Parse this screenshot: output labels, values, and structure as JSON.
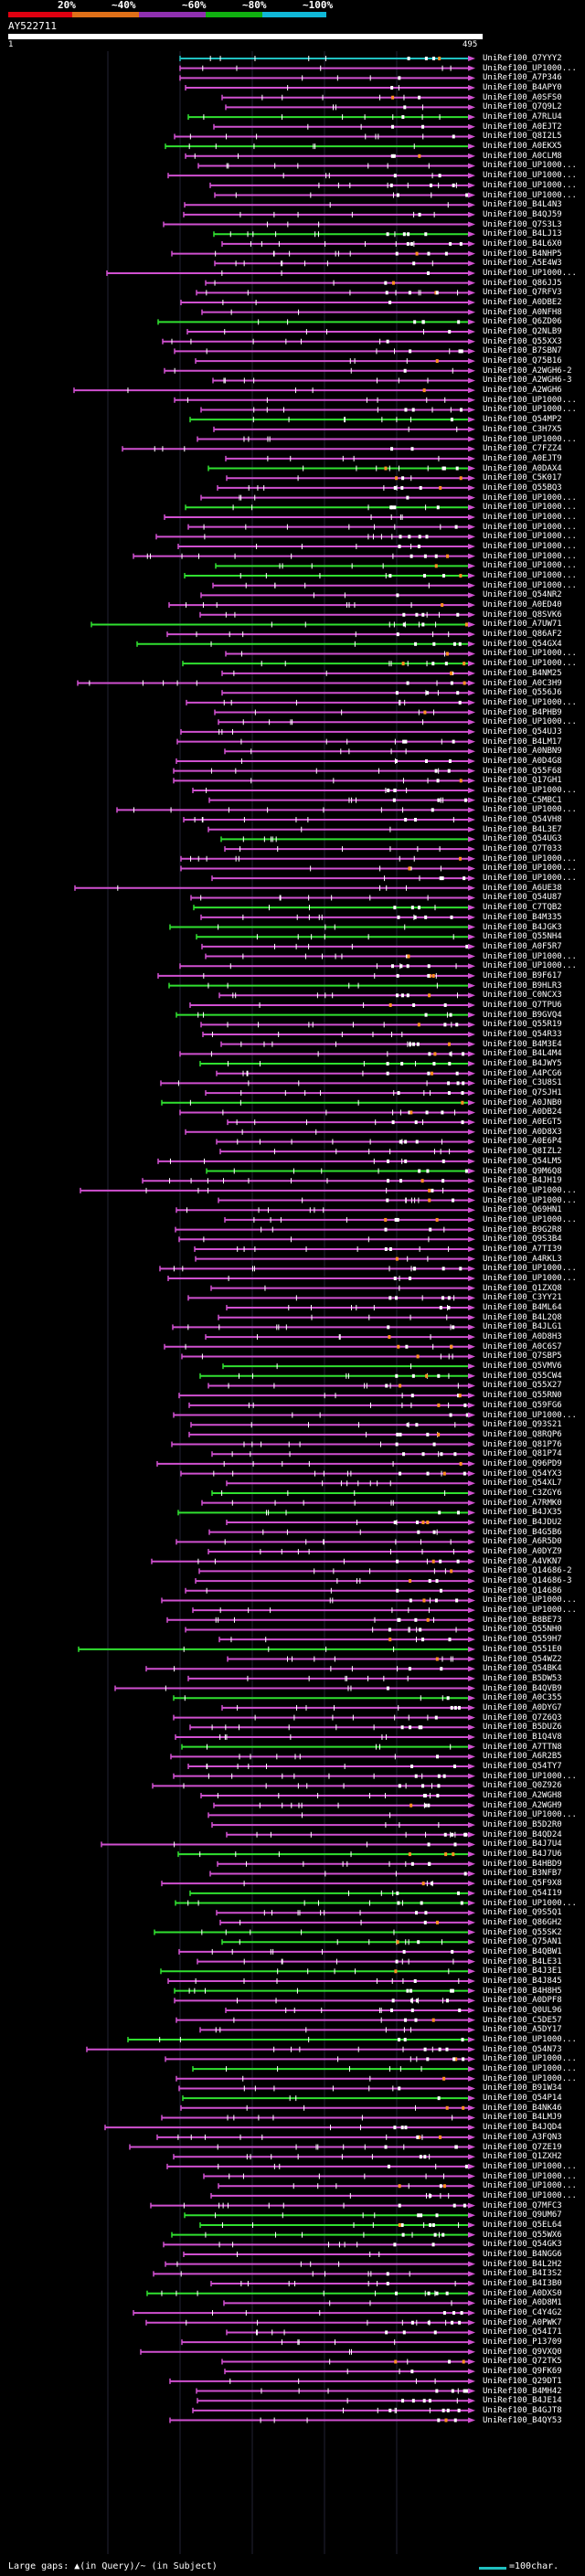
{
  "header": {
    "coverage_ticks": [
      "20%",
      "~40%",
      "~60%",
      "~80%",
      "~100%"
    ],
    "coverage_colors": [
      "#e00010",
      "#e07018",
      "#9030b0",
      "#10b010",
      "#10b8d8"
    ],
    "query_id": "AY522711",
    "query_start": "1",
    "query_end": "495"
  },
  "colors": {
    "hit_line": "#d050d0",
    "hit_good": "#30e030",
    "exon": "#ffffff",
    "top_hit": "#20c0c0",
    "orange": "#ff9020",
    "label": "#ffffff"
  },
  "hits": [
    "UniRef100_Q7YYY2",
    "UniRef100_UP1000...",
    "UniRef100_A7P346",
    "UniRef100_B4APY0",
    "UniRef100_A0SFS0",
    "UniRef100_Q7Q9L2",
    "UniRef100_A7RLU4",
    "UniRef100_A0EJT2",
    "UniRef100_Q8I2L5",
    "UniRef100_A0EKX5",
    "UniRef100_A0CLM8",
    "UniRef100_UP1000...",
    "UniRef100_UP1000...",
    "UniRef100_UP1000...",
    "UniRef100_UP1000...",
    "UniRef100_B4L4N3",
    "UniRef100_B4QJ59",
    "UniRef100_Q7S3L3",
    "UniRef100_B4LJ13",
    "UniRef100_B4L6X0",
    "UniRef100_B4NHP5",
    "UniRef100_A5E4W3",
    "UniRef100_UP1000...",
    "UniRef100_Q86JJ5",
    "UniRef100_Q7RFV3",
    "UniRef100_A0DBE2",
    "UniRef100_A0NFH8",
    "UniRef100_Q6ZD06",
    "UniRef100_Q2NLB9",
    "UniRef100_Q55XX3",
    "UniRef100_B7SBN7",
    "UniRef100_Q75B16",
    "UniRef100_A2WGH6-2",
    "UniRef100_A2WGH6-3",
    "UniRef100_A2WGH6",
    "UniRef100_UP1000...",
    "UniRef100_UP1000...",
    "UniRef100_Q54MP2",
    "UniRef100_C3H7X5",
    "UniRef100_UP1000...",
    "UniRef100_C7FZZ4",
    "UniRef100_A0EJT9",
    "UniRef100_A0DAX4",
    "UniRef100_C5K017",
    "UniRef100_Q55BQ3",
    "UniRef100_UP1000...",
    "UniRef100_UP1000...",
    "UniRef100_UP1000...",
    "UniRef100_UP1000...",
    "UniRef100_UP1000...",
    "UniRef100_UP1000...",
    "UniRef100_UP1000...",
    "UniRef100_UP1000...",
    "UniRef100_UP1000...",
    "UniRef100_UP1000...",
    "UniRef100_Q54NR2",
    "UniRef100_A0ED40",
    "UniRef100_Q8SVK6",
    "UniRef100_A7UW71",
    "UniRef100_Q86AF2",
    "UniRef100_Q54GX4",
    "UniRef100_UP1000...",
    "UniRef100_UP1000...",
    "UniRef100_B4NM25",
    "UniRef100_A0C3H9",
    "UniRef100_Q556J6",
    "UniRef100_UP1000...",
    "UniRef100_B4PHB9",
    "UniRef100_UP1000...",
    "UniRef100_Q54UJ3",
    "UniRef100_B4LM17",
    "UniRef100_A0NBN9",
    "UniRef100_A0D4G8",
    "UniRef100_Q55F68",
    "UniRef100_Q17GH1",
    "UniRef100_UP1000...",
    "UniRef100_C5MBC1",
    "UniRef100_UP1000...",
    "UniRef100_Q54VH8",
    "UniRef100_B4L3E7",
    "UniRef100_Q54UG3",
    "UniRef100_Q7T033",
    "UniRef100_UP1000...",
    "UniRef100_UP1000...",
    "UniRef100_UP1000...",
    "UniRef100_A6UE38",
    "UniRef100_Q54U87",
    "UniRef100_C7TQB2",
    "UniRef100_B4M335",
    "UniRef100_B4JGK3",
    "UniRef100_Q55NH4",
    "UniRef100_A0F5R7",
    "UniRef100_UP1000...",
    "UniRef100_UP1000...",
    "UniRef100_B9F617",
    "UniRef100_B9HLR3",
    "UniRef100_C0NCX3",
    "UniRef100_Q7TPU6",
    "UniRef100_B9GVQ4",
    "UniRef100_Q55R19",
    "UniRef100_Q54R33",
    "UniRef100_B4M3E4",
    "UniRef100_B4L4M4",
    "UniRef100_B4JWY5",
    "UniRef100_A4PCG6",
    "UniRef100_C3U8S1",
    "UniRef100_Q7SJH1",
    "UniRef100_A0JNB0",
    "UniRef100_A0DB24",
    "UniRef100_A0EGT5",
    "UniRef100_A0D8X3",
    "UniRef100_A0E6P4",
    "UniRef100_Q8IZL2",
    "UniRef100_Q54LM5",
    "UniRef100_Q9M6Q8",
    "UniRef100_B4JH19",
    "UniRef100_UP1000...",
    "UniRef100_UP1000...",
    "UniRef100_Q69HN1",
    "UniRef100_UP1000...",
    "UniRef100_B9G2R8",
    "UniRef100_Q9S3B4",
    "UniRef100_A7TI39",
    "UniRef100_A4RKL3",
    "UniRef100_UP1000...",
    "UniRef100_UP1000...",
    "UniRef100_Q1ZXQ8",
    "UniRef100_C3YY21",
    "UniRef100_B4ML64",
    "UniRef100_B4L2Q8",
    "UniRef100_B4JLG1",
    "UniRef100_A0D8H3",
    "UniRef100_A0C6S7",
    "UniRef100_Q7SBP5",
    "UniRef100_Q5VMV6",
    "UniRef100_Q55CW4",
    "UniRef100_Q55X27",
    "UniRef100_Q55RN0",
    "UniRef100_Q59FG6",
    "UniRef100_UP1000...",
    "UniRef100_Q93S21",
    "UniRef100_Q8RQP6",
    "UniRef100_Q81P76",
    "UniRef100_Q81P74",
    "UniRef100_Q96PD9",
    "UniRef100_Q54YX3",
    "UniRef100_Q54XL7",
    "UniRef100_C3ZGY6",
    "UniRef100_A7RMK0",
    "UniRef100_B4JX35",
    "UniRef100_B4JDU2",
    "UniRef100_B4G5B6",
    "UniRef100_A6R5D0",
    "UniRef100_A0DYZ9",
    "UniRef100_A4VKN7",
    "UniRef100_Q14686-2",
    "UniRef100_Q14686-3",
    "UniRef100_Q14686",
    "UniRef100_UP1000...",
    "UniRef100_UP1000...",
    "UniRef100_B8BE73",
    "UniRef100_Q55NH0",
    "UniRef100_Q559H7",
    "UniRef100_Q551E0",
    "UniRef100_Q54WZ2",
    "UniRef100_Q54BK4",
    "UniRef100_B5DW53",
    "UniRef100_B4QVB9",
    "UniRef100_A0C355",
    "UniRef100_A0DYG7",
    "UniRef100_Q7Z6Q3",
    "UniRef100_B5DUZ6",
    "UniRef100_B1Q4V8",
    "UniRef100_A7TTN8",
    "UniRef100_A6R2B5",
    "UniRef100_Q54TY7",
    "UniRef100_UP1000...",
    "UniRef100_Q0Z926",
    "UniRef100_A2WGH8",
    "UniRef100_A2WGH9",
    "UniRef100_UP1000...",
    "UniRef100_B5D2R0",
    "UniRef100_B4QD24",
    "UniRef100_B4J7U4",
    "UniRef100_B4J7U6",
    "UniRef100_B4HBD9",
    "UniRef100_B3NFB7",
    "UniRef100_Q5F9X8",
    "UniRef100_Q54I19",
    "UniRef100_UP1000...",
    "UniRef100_Q9S5Q1",
    "UniRef100_Q86GH2",
    "UniRef100_Q55SK2",
    "UniRef100_Q75AN1",
    "UniRef100_B4QBW1",
    "UniRef100_B4LE31",
    "UniRef100_B4J3E1",
    "UniRef100_B4J845",
    "UniRef100_B4H8H5",
    "UniRef100_A0DPF8",
    "UniRef100_Q0UL96",
    "UniRef100_C5DE57",
    "UniRef100_A5DY17",
    "UniRef100_UP1000...",
    "UniRef100_Q54N73",
    "UniRef100_UP1000...",
    "UniRef100_UP1000...",
    "UniRef100_UP1000...",
    "UniRef100_B91W34",
    "UniRef100_Q54P14",
    "UniRef100_B4NK46",
    "UniRef100_B4LMJ9",
    "UniRef100_B4JQD4",
    "UniRef100_A3FQN3",
    "UniRef100_Q7ZE19",
    "UniRef100_Q1ZXH2",
    "UniRef100_UP1000...",
    "UniRef100_UP1000...",
    "UniRef100_UP1000...",
    "UniRef100_UP1000...",
    "UniRef100_Q7MFC3",
    "UniRef100_Q9UM67",
    "UniRef100_Q5EL64",
    "UniRef100_Q55WX6",
    "UniRef100_Q54GK3",
    "UniRef100_B4NGG6",
    "UniRef100_B4L2H2",
    "UniRef100_B4I3S2",
    "UniRef100_B4I3B0",
    "UniRef100_A0DXS0",
    "UniRef100_A0D8M1",
    "UniRef100_C4Y4G2",
    "UniRef100_A0PWK7",
    "UniRef100_Q54I71",
    "UniRef100_P13709",
    "UniRef100_Q9VXQ0",
    "UniRef100_Q72TK5",
    "UniRef100_Q9FK69",
    "UniRef100_Q29DT1",
    "UniRef100_B4MH42",
    "UniRef100_B4JE14",
    "UniRef100_B4GJT8",
    "UniRef100_B4QY53"
  ],
  "legend": {
    "gaps_text": "Large gaps: ▲(in Query)/~ (in Subject)",
    "scale_text": "=100char."
  }
}
